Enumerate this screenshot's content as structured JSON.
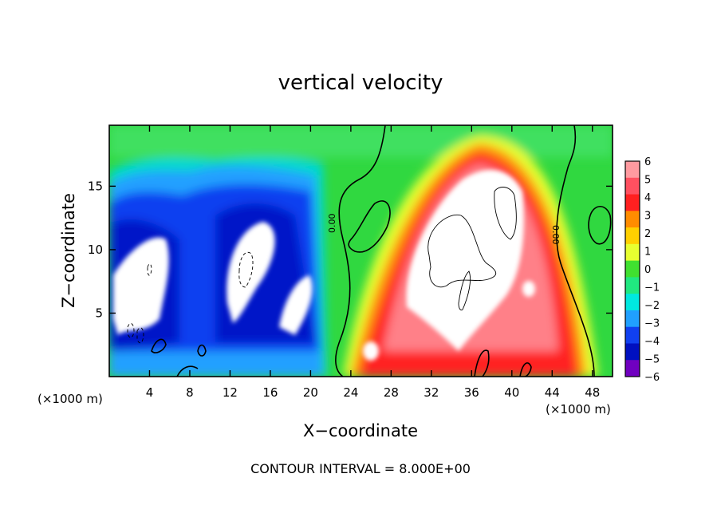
{
  "chart_data": {
    "type": "heatmap",
    "title": "vertical velocity",
    "xlabel": "X−coordinate",
    "ylabel": "Z−coordinate",
    "x_unit": "(×1000 m)",
    "xlim": [
      0,
      50
    ],
    "ylim": [
      0,
      19.8
    ],
    "x_ticks": [
      4,
      8,
      12,
      16,
      20,
      24,
      28,
      32,
      36,
      40,
      44,
      48
    ],
    "x_tick_labels": [
      "4",
      "8",
      "12",
      "16",
      "20",
      "24",
      "28",
      "32",
      "36",
      "40",
      "44",
      "48"
    ],
    "y_ticks": [
      5,
      10,
      15
    ],
    "y_tick_labels": [
      "5",
      "10",
      "15"
    ],
    "colorbar": {
      "levels": [
        6,
        5,
        4,
        3,
        2,
        1,
        0,
        -1,
        -2,
        -3,
        -4,
        -5,
        -6
      ],
      "labels": [
        "6",
        "5",
        "4",
        "3",
        "2",
        "1",
        "0",
        "−1",
        "−2",
        "−3",
        "−4",
        "−5",
        "−6"
      ],
      "colors": [
        "#ff9aa0",
        "#ff5060",
        "#ff2020",
        "#ff8c00",
        "#ffd000",
        "#e8ff30",
        "#40e030",
        "#20e880",
        "#00e8e0",
        "#20a0ff",
        "#1040f0",
        "#0010c0",
        "#7000c0"
      ]
    },
    "features": [
      {
        "kind": "updraft",
        "value": 6,
        "x": 36,
        "z": 10
      },
      {
        "kind": "downdraft",
        "value": -6,
        "x": 3,
        "z": 7
      },
      {
        "kind": "downdraft",
        "value": -6,
        "x": 13,
        "z": 9
      },
      {
        "kind": "downdraft",
        "value": -6,
        "x": 19,
        "z": 6
      }
    ],
    "grid": false,
    "annotation": "CONTOUR INTERVAL = 8.000E+00"
  }
}
